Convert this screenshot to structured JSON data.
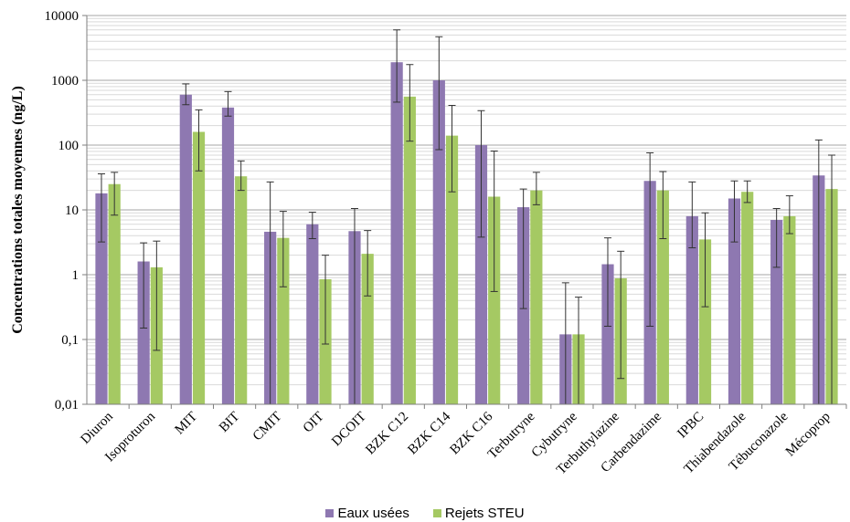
{
  "chart_data": {
    "type": "bar",
    "title": "",
    "xlabel": "",
    "ylabel": "Concentrations totales moyennes (ng/L)",
    "yscale": "log",
    "ylim": [
      0.01,
      10000
    ],
    "yticks": [
      "0,01",
      "0,1",
      "1",
      "10",
      "100",
      "1000",
      "10000"
    ],
    "grid": true,
    "legend_position": "bottom",
    "categories": [
      "Diuron",
      "Isoproturon",
      "MIT",
      "BIT",
      "CMIT",
      "OIT",
      "DCOIT",
      "BZK C12",
      "BZK C14",
      "BZK C16",
      "Terbutryne",
      "Cybutryne",
      "Terbuthylazine",
      "Carbendazime",
      "IPBC",
      "Thiabendazole",
      "Tébuconazole",
      "Mécoprop"
    ],
    "series": [
      {
        "name": "Eaux usées",
        "color": "#8e78b1",
        "values": [
          18,
          1.6,
          600,
          380,
          4.6,
          6,
          4.7,
          1900,
          1000,
          100,
          11,
          0.12,
          1.45,
          28,
          8,
          15,
          7,
          34
        ],
        "error_low": [
          3.2,
          0.15,
          420,
          280,
          0.01,
          3.6,
          0.01,
          460,
          85,
          3.8,
          0.3,
          0.01,
          0.16,
          0.16,
          2.6,
          3.2,
          1.3,
          0.01
        ],
        "error_high": [
          36,
          3.1,
          880,
          670,
          27,
          9.2,
          10.5,
          6000,
          4700,
          340,
          21,
          0.75,
          3.7,
          76,
          27,
          28,
          10.5,
          120
        ]
      },
      {
        "name": "Rejets STEU",
        "color": "#a5c963",
        "values": [
          25,
          1.3,
          160,
          33,
          3.7,
          0.85,
          2.1,
          560,
          140,
          16,
          20,
          0.12,
          0.88,
          20,
          3.5,
          19,
          8,
          21
        ],
        "error_low": [
          8.3,
          0.068,
          40,
          20,
          0.65,
          0.085,
          0.47,
          115,
          19,
          0.55,
          12,
          0.01,
          0.025,
          3.6,
          0.32,
          13,
          4.3,
          0.01
        ],
        "error_high": [
          38,
          3.3,
          350,
          57,
          9.5,
          2,
          4.8,
          1750,
          410,
          81,
          38,
          0.45,
          2.3,
          39,
          9,
          28,
          16.5,
          70
        ]
      }
    ]
  }
}
